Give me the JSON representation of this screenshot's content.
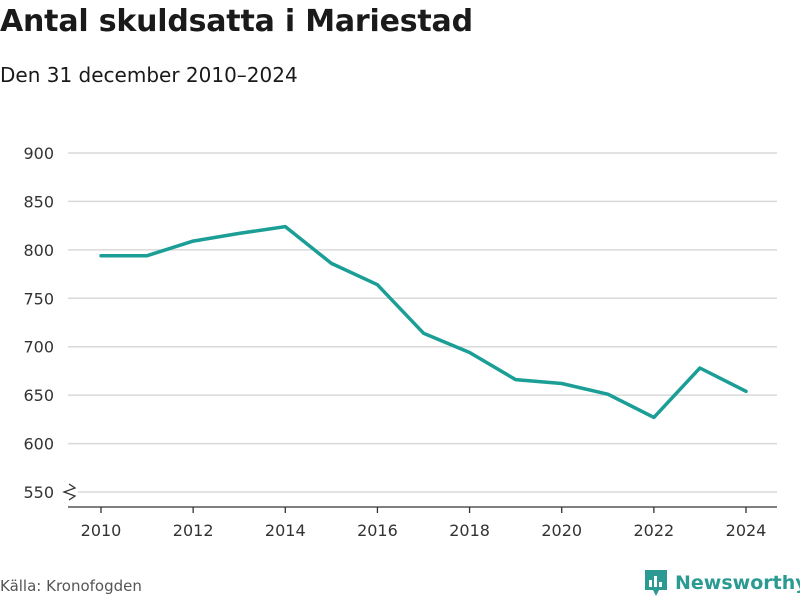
{
  "header": {
    "title": "Antal skuldsatta i Mariestad",
    "subtitle": "Den 31 december 2010–2024"
  },
  "footer": {
    "source": "Källa: Kronofogden",
    "brand": "Newsworthy",
    "brand_icon": "newsworthy-logo-icon"
  },
  "colors": {
    "line": "#1a9e96",
    "grid": "#d9d9d9",
    "axis": "#333333",
    "brand": "#2a9a93"
  },
  "chart_data": {
    "type": "line",
    "title": "Antal skuldsatta i Mariestad",
    "subtitle": "Den 31 december 2010–2024",
    "x": [
      2010,
      2011,
      2012,
      2013,
      2014,
      2015,
      2016,
      2017,
      2018,
      2019,
      2020,
      2021,
      2022,
      2023,
      2024
    ],
    "series": [
      {
        "name": "Antal skuldsatta",
        "values": [
          794,
          794,
          809,
          817,
          824,
          786,
          764,
          714,
          694,
          666,
          662,
          651,
          627,
          678,
          654
        ]
      }
    ],
    "xticks": [
      2010,
      2012,
      2014,
      2016,
      2018,
      2020,
      2022,
      2024
    ],
    "xtick_labels": [
      "2010",
      "2012",
      "2014",
      "2016",
      "2018",
      "2020",
      "2022",
      "2024"
    ],
    "yticks": [
      550,
      600,
      650,
      700,
      750,
      800,
      850,
      900
    ],
    "ytick_labels": [
      "550",
      "600",
      "650",
      "700",
      "750",
      "800",
      "850",
      "900"
    ],
    "ylim": [
      550,
      900
    ],
    "xlim": [
      2010,
      2024
    ],
    "axis_break": true,
    "grid": true,
    "xlabel": "",
    "ylabel": ""
  }
}
